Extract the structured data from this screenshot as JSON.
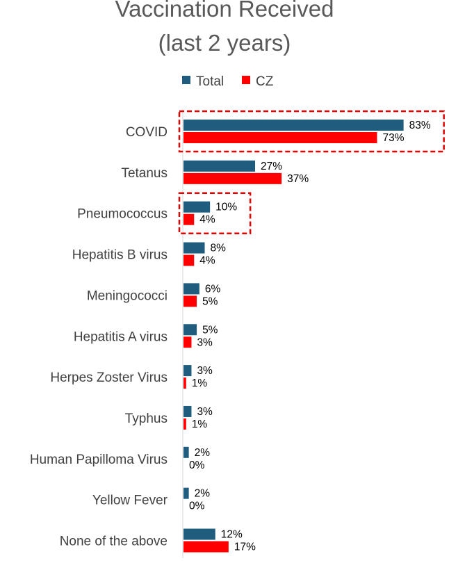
{
  "chart_data": {
    "type": "bar",
    "orientation": "horizontal",
    "title": [
      "Vaccination Received",
      "(last 2 years)"
    ],
    "categories": [
      "COVID",
      "Tetanus",
      "Pneumococcus",
      "Hepatitis B virus",
      "Meningococci",
      "Hepatitis A virus",
      "Herpes Zoster Virus",
      "Typhus",
      "Human Papilloma Virus",
      "Yellow Fever",
      "None of the above"
    ],
    "series": [
      {
        "name": "Total",
        "color": "#1F5C7E",
        "values": [
          83,
          27,
          10,
          8,
          6,
          5,
          3,
          3,
          2,
          2,
          12
        ],
        "labels": [
          "83%",
          "27%",
          "10%",
          "8%",
          "6%",
          "5%",
          "3%",
          "3%",
          "2%",
          "2%",
          "12%"
        ]
      },
      {
        "name": "CZ",
        "color": "#FF0000",
        "values": [
          73,
          37,
          4,
          4,
          5,
          3,
          1,
          1,
          0,
          0,
          17
        ],
        "labels": [
          "73%",
          "37%",
          "4%",
          "4%",
          "5%",
          "3%",
          "1%",
          "1%",
          "0%",
          "0%",
          "17%"
        ]
      }
    ],
    "unit": "%",
    "xlim": [
      0,
      100
    ],
    "legend": "top-center",
    "grid": false,
    "highlighted_categories": [
      "COVID",
      "Pneumococcus"
    ],
    "highlight_color": "#E00000"
  }
}
